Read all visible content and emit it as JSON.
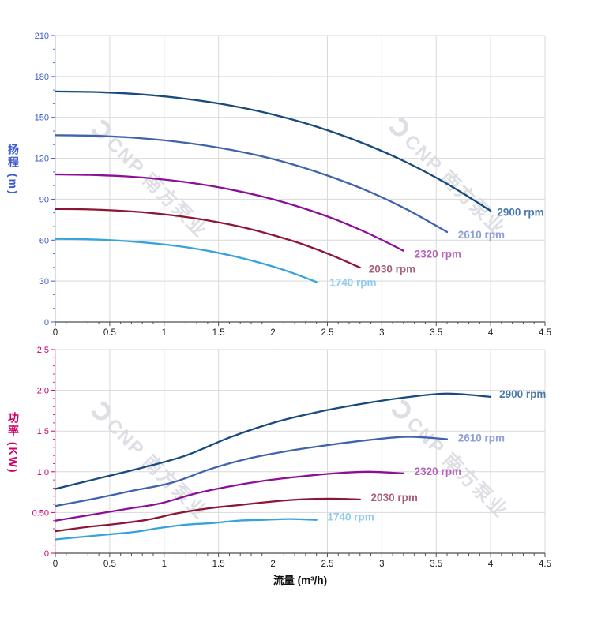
{
  "watermark": {
    "text": "CNP 南方泵业",
    "color": "#c9ccd6"
  },
  "chart_data": [
    {
      "name": "head-curve-chart",
      "type": "line",
      "title": "",
      "xlabel": "",
      "ylabel": "扬程 (m)",
      "axis_color": "#3f5bd0",
      "x_axis_color": "#4d4d4d",
      "grid_color": "#d9d9d9",
      "grid": true,
      "legend_position": "curve-end-labels",
      "xlim": [
        0,
        4.5
      ],
      "ylim": [
        0,
        210
      ],
      "xtick_values": [
        0,
        0.5,
        1,
        1.5,
        2,
        2.5,
        3,
        3.5,
        4,
        4.5
      ],
      "xtick_labels": [
        "0",
        "0.5",
        "1",
        "1.5",
        "2",
        "2.5",
        "3",
        "3.5",
        "4",
        "4.5"
      ],
      "ytick_values": [
        0,
        30,
        60,
        90,
        120,
        150,
        180,
        210
      ],
      "ytick_labels": [
        "0",
        "30",
        "60",
        "90",
        "120",
        "150",
        "180",
        "210"
      ],
      "x_minor_step": 0.1,
      "y_minor_step": 10,
      "series": [
        {
          "name": "2900 rpm",
          "label": "2900 rpm",
          "color": "#174a7e",
          "label_color": "#4a79ae",
          "label_at": [
            4.06,
            80
          ],
          "x": [
            0,
            0.4,
            0.8,
            1.2,
            1.6,
            2.0,
            2.4,
            2.8,
            3.2,
            3.6,
            4.0
          ],
          "y": [
            169,
            168.5,
            166.8,
            163.6,
            158.8,
            152.1,
            143.2,
            131.9,
            118.1,
            101.3,
            81.5
          ]
        },
        {
          "name": "2610 rpm",
          "label": "2610 rpm",
          "color": "#4063ae",
          "label_color": "#8ca0d6",
          "label_at": [
            3.7,
            63.5
          ],
          "x": [
            0,
            0.36,
            0.72,
            1.08,
            1.44,
            1.8,
            2.16,
            2.52,
            2.88,
            3.24,
            3.6
          ],
          "y": [
            136.9,
            136.5,
            135.1,
            132.5,
            128.6,
            123.2,
            116.0,
            106.8,
            95.7,
            82.1,
            66.0
          ]
        },
        {
          "name": "2320 rpm",
          "label": "2320 rpm",
          "color": "#8d0f98",
          "label_color": "#b762bd",
          "label_at": [
            3.3,
            49.5
          ],
          "x": [
            0,
            0.32,
            0.64,
            0.96,
            1.28,
            1.6,
            1.92,
            2.24,
            2.56,
            2.88,
            3.2
          ],
          "y": [
            108.2,
            107.8,
            106.8,
            104.7,
            101.6,
            97.3,
            91.6,
            84.4,
            75.6,
            64.8,
            52.2
          ]
        },
        {
          "name": "2030 rpm",
          "label": "2030 rpm",
          "color": "#8e1535",
          "label_color": "#a6607a",
          "label_at": [
            2.88,
            38.5
          ],
          "x": [
            0,
            0.28,
            0.56,
            0.84,
            1.12,
            1.4,
            1.68,
            1.96,
            2.24,
            2.52,
            2.8
          ],
          "y": [
            82.8,
            82.6,
            81.7,
            80.2,
            77.8,
            74.5,
            70.2,
            64.6,
            57.9,
            49.6,
            39.9
          ]
        },
        {
          "name": "1740 rpm",
          "label": "1740 rpm",
          "color": "#36a3dc",
          "label_color": "#92ccec",
          "label_at": [
            2.52,
            28.5
          ],
          "x": [
            0,
            0.24,
            0.48,
            0.72,
            0.96,
            1.2,
            1.44,
            1.68,
            1.92,
            2.16,
            2.4
          ],
          "y": [
            60.9,
            60.7,
            60.1,
            58.9,
            57.2,
            54.8,
            51.6,
            47.5,
            42.5,
            36.5,
            29.3
          ]
        }
      ]
    },
    {
      "name": "power-curve-chart",
      "type": "line",
      "title": "",
      "xlabel": "流量 (m³/h)",
      "ylabel": "功率 (KW)",
      "axis_color": "#cc0066",
      "x_axis_color": "#4d4d4d",
      "grid_color": "#d9d9d9",
      "grid": true,
      "legend_position": "curve-end-labels",
      "xlim": [
        0,
        4.5
      ],
      "ylim": [
        0,
        2.5
      ],
      "xtick_values": [
        0,
        0.5,
        1,
        1.5,
        2,
        2.5,
        3,
        3.5,
        4,
        4.5
      ],
      "xtick_labels": [
        "0",
        "0.5",
        "1",
        "1.5",
        "2",
        "2.5",
        "3",
        "3.5",
        "4",
        "4.5"
      ],
      "ytick_values": [
        0,
        0.5,
        1.0,
        1.5,
        2.0,
        2.5
      ],
      "ytick_labels": [
        "0",
        "0.50",
        "1.0",
        "1.5",
        "2.0",
        "2.5"
      ],
      "x_minor_step": 0.1,
      "y_minor_step": 0.1,
      "series": [
        {
          "name": "2900 rpm",
          "label": "2900 rpm",
          "color": "#174a7e",
          "label_color": "#4a79ae",
          "label_at": [
            4.08,
            1.95
          ],
          "x": [
            0,
            0.4,
            0.8,
            1.2,
            1.6,
            2.0,
            2.4,
            2.8,
            3.2,
            3.6,
            4.0
          ],
          "y": [
            0.79,
            0.92,
            1.05,
            1.2,
            1.42,
            1.6,
            1.73,
            1.83,
            1.91,
            1.96,
            1.92
          ]
        },
        {
          "name": "2610 rpm",
          "label": "2610 rpm",
          "color": "#4063ae",
          "label_color": "#8ca0d6",
          "label_at": [
            3.7,
            1.41
          ],
          "x": [
            0,
            0.36,
            0.72,
            1.08,
            1.44,
            1.8,
            2.16,
            2.52,
            2.88,
            3.24,
            3.6
          ],
          "y": [
            0.58,
            0.67,
            0.77,
            0.87,
            1.04,
            1.17,
            1.26,
            1.33,
            1.39,
            1.43,
            1.4
          ]
        },
        {
          "name": "2320 rpm",
          "label": "2320 rpm",
          "color": "#8d0f98",
          "label_color": "#b762bd",
          "label_at": [
            3.3,
            1.0
          ],
          "x": [
            0,
            0.32,
            0.64,
            0.96,
            1.28,
            1.6,
            1.92,
            2.24,
            2.56,
            2.88,
            3.2
          ],
          "y": [
            0.4,
            0.47,
            0.54,
            0.61,
            0.73,
            0.82,
            0.89,
            0.94,
            0.98,
            1.0,
            0.98
          ]
        },
        {
          "name": "2030 rpm",
          "label": "2030 rpm",
          "color": "#8e1535",
          "label_color": "#a6607a",
          "label_at": [
            2.9,
            0.68
          ],
          "x": [
            0,
            0.28,
            0.56,
            0.84,
            1.12,
            1.4,
            1.68,
            1.96,
            2.24,
            2.52,
            2.8
          ],
          "y": [
            0.27,
            0.32,
            0.36,
            0.41,
            0.49,
            0.55,
            0.59,
            0.63,
            0.66,
            0.67,
            0.66
          ]
        },
        {
          "name": "1740 rpm",
          "label": "1740 rpm",
          "color": "#36a3dc",
          "label_color": "#92ccec",
          "label_at": [
            2.5,
            0.44
          ],
          "x": [
            0,
            0.24,
            0.48,
            0.72,
            0.96,
            1.2,
            1.44,
            1.68,
            1.92,
            2.16,
            2.4
          ],
          "y": [
            0.17,
            0.2,
            0.23,
            0.26,
            0.31,
            0.35,
            0.37,
            0.4,
            0.41,
            0.42,
            0.41
          ]
        }
      ]
    }
  ]
}
